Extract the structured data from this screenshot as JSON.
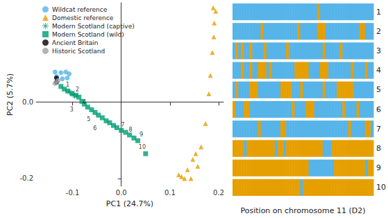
{
  "chart_data": [
    {
      "type": "scatter",
      "xlabel": "PC1 (24.7%)",
      "ylabel": "PC2 (5.7%)",
      "xlim": [
        -0.175,
        0.21
      ],
      "ylim": [
        -0.22,
        0.26
      ],
      "xticks": [
        -0.1,
        {
          "value": 0,
          "label": "0.0"
        },
        0.1,
        0.2
      ],
      "yticks": [
        -0.2,
        {
          "value": 0,
          "label": "0.0"
        }
      ],
      "grid": false,
      "legend": "top-left",
      "series": [
        {
          "name": "Wildcat reference",
          "color": "#56B4E9",
          "marker": "circle",
          "x": [
            -0.136,
            -0.124,
            -0.114,
            -0.107,
            -0.133,
            -0.111,
            -0.121
          ],
          "y": [
            0.079,
            0.077,
            0.079,
            0.074,
            0.067,
            0.063,
            0.061
          ]
        },
        {
          "name": "Domestic reference",
          "color": "#E69F00",
          "marker": "triangle",
          "x": [
            0.124,
            0.13,
            0.136,
            0.147,
            0.153,
            0.164,
            0.157,
            0.173,
            0.18,
            0.183,
            0.187,
            0.19,
            0.191,
            0.194,
            0.189,
            0.143,
            0.118
          ],
          "y": [
            -0.195,
            -0.2,
            -0.177,
            -0.15,
            -0.135,
            -0.117,
            -0.168,
            -0.056,
            0.022,
            0.07,
            0.13,
            0.171,
            0.207,
            0.238,
            0.247,
            -0.2,
            -0.19
          ]
        },
        {
          "name": "Modern Scotland (captive)",
          "color": "#009E73",
          "marker": "asterisk",
          "x": [
            -0.107,
            -0.101,
            -0.096
          ],
          "y": [
            0.027,
            0.02,
            0.016
          ]
        },
        {
          "name": "Modern Scotland (wild)",
          "color": "#009E73",
          "marker": "square",
          "x": [
            -0.124,
            -0.117,
            -0.11,
            -0.101,
            -0.093,
            -0.087,
            -0.081,
            -0.076,
            -0.069,
            -0.061,
            -0.054,
            -0.047,
            -0.039,
            -0.031,
            -0.024,
            -0.016,
            -0.009,
            0.0,
            0.009,
            0.017,
            0.026,
            0.034,
            0.05
          ],
          "y": [
            0.041,
            0.034,
            0.029,
            0.023,
            0.018,
            0.013,
            0.002,
            -0.005,
            -0.013,
            -0.02,
            -0.027,
            -0.034,
            -0.041,
            -0.049,
            -0.054,
            -0.061,
            -0.067,
            -0.074,
            -0.079,
            -0.086,
            -0.094,
            -0.101,
            -0.135
          ]
        },
        {
          "name": "Ancient Britain",
          "color": "#000000",
          "marker": "circle",
          "x": [
            -0.133,
            -0.133
          ],
          "y": [
            0.063,
            0.052
          ]
        },
        {
          "name": "Historic Scotland",
          "color": "#A0A0A0",
          "marker": "circle",
          "x": [
            -0.136,
            -0.13
          ],
          "y": [
            0.049,
            0.056
          ]
        }
      ],
      "annotations": [
        {
          "text": "1",
          "x": -0.11,
          "y": 0.046
        },
        {
          "text": "2",
          "x": -0.09,
          "y": 0.033
        },
        {
          "text": "3",
          "x": -0.102,
          "y": -0.02
        },
        {
          "text": "4",
          "x": -0.076,
          "y": 0.0
        },
        {
          "text": "5",
          "x": -0.067,
          "y": -0.045
        },
        {
          "text": "6",
          "x": -0.054,
          "y": -0.068
        },
        {
          "text": "7",
          "x": 0.003,
          "y": -0.06
        },
        {
          "text": "8",
          "x": 0.019,
          "y": -0.073
        },
        {
          "text": "9",
          "x": 0.041,
          "y": -0.085
        },
        {
          "text": "10",
          "x": 0.043,
          "y": -0.118
        }
      ]
    },
    {
      "type": "heatmap",
      "xlabel": "Position on chromosome 11 (D2)",
      "categories": [
        "1",
        "2",
        "3",
        "4",
        "5",
        "6",
        "7",
        "8",
        "9",
        "10"
      ],
      "tick_labels": "y",
      "colors": [
        "#56B4E9",
        "#E69F00"
      ],
      "cells": [
        [
          0,
          0,
          0,
          0,
          0,
          0,
          0,
          0,
          0,
          0,
          0,
          0,
          0,
          0,
          0,
          0,
          0,
          0,
          0,
          0,
          0,
          0,
          0,
          0,
          0,
          0,
          0,
          0,
          0,
          0,
          1,
          0,
          0,
          0,
          0,
          0,
          0,
          0,
          0,
          0,
          0,
          0,
          0,
          0,
          0,
          0,
          0,
          0,
          0,
          0
        ],
        [
          0,
          0,
          0,
          0,
          0,
          0,
          0,
          0,
          0,
          0,
          1,
          0,
          0,
          0,
          0,
          0,
          0,
          0,
          0,
          0,
          0,
          0,
          0,
          1,
          0,
          0,
          0,
          0,
          0,
          0,
          1,
          1,
          1,
          0,
          0,
          0,
          0,
          0,
          0,
          0,
          0,
          0,
          0,
          0,
          0,
          1,
          1,
          0,
          0,
          0
        ],
        [
          0,
          1,
          0,
          1,
          0,
          0,
          1,
          0,
          0,
          0,
          0,
          1,
          0,
          0,
          0,
          0,
          0,
          0,
          0,
          1,
          0,
          0,
          0,
          0,
          0,
          0,
          0,
          0,
          0,
          0,
          0,
          0,
          1,
          0,
          0,
          0,
          0,
          0,
          1,
          0,
          0,
          0,
          0,
          0,
          0,
          0,
          0,
          0,
          0,
          0
        ],
        [
          0,
          0,
          0,
          1,
          0,
          0,
          1,
          0,
          0,
          1,
          1,
          1,
          0,
          1,
          0,
          0,
          0,
          0,
          0,
          0,
          0,
          0,
          1,
          1,
          1,
          1,
          1,
          0,
          0,
          0,
          0,
          1,
          1,
          1,
          0,
          0,
          0,
          0,
          0,
          0,
          0,
          0,
          1,
          0,
          0,
          0,
          0,
          1,
          0,
          0
        ],
        [
          0,
          1,
          0,
          0,
          0,
          0,
          1,
          1,
          1,
          0,
          0,
          0,
          0,
          0,
          0,
          0,
          0,
          1,
          1,
          1,
          1,
          0,
          0,
          0,
          1,
          0,
          0,
          0,
          0,
          0,
          0,
          0,
          1,
          0,
          0,
          0,
          0,
          1,
          1,
          1,
          1,
          1,
          1,
          0,
          0,
          0,
          0,
          0,
          0,
          0
        ],
        [
          1,
          0,
          0,
          0,
          1,
          1,
          0,
          0,
          0,
          0,
          0,
          0,
          0,
          0,
          0,
          0,
          0,
          0,
          0,
          0,
          0,
          1,
          0,
          0,
          0,
          0,
          1,
          1,
          1,
          0,
          0,
          0,
          0,
          0,
          0,
          0,
          0,
          0,
          0,
          1,
          0,
          0,
          0,
          0,
          1,
          0,
          0,
          0,
          0,
          0
        ],
        [
          0,
          0,
          0,
          0,
          0,
          0,
          0,
          0,
          0,
          1,
          0,
          0,
          0,
          0,
          0,
          0,
          0,
          1,
          1,
          0,
          0,
          0,
          0,
          0,
          0,
          0,
          0,
          0,
          0,
          0,
          0,
          0,
          0,
          0,
          0,
          0,
          0,
          0,
          0,
          0,
          0,
          1,
          0,
          0,
          0,
          0,
          0,
          1,
          1,
          0
        ],
        [
          1,
          1,
          1,
          1,
          0,
          1,
          1,
          1,
          1,
          1,
          1,
          1,
          1,
          1,
          1,
          0,
          1,
          1,
          0,
          1,
          1,
          1,
          1,
          1,
          1,
          1,
          1,
          1,
          1,
          1,
          1,
          1,
          0,
          0,
          0,
          1,
          1,
          1,
          1,
          1,
          1,
          1,
          1,
          1,
          1,
          1,
          1,
          1,
          1,
          1
        ],
        [
          1,
          1,
          1,
          1,
          1,
          1,
          1,
          1,
          1,
          1,
          1,
          1,
          1,
          1,
          1,
          1,
          1,
          1,
          1,
          1,
          1,
          1,
          1,
          1,
          1,
          1,
          1,
          0,
          0,
          0,
          0,
          0,
          0,
          0,
          0,
          0,
          1,
          1,
          1,
          1,
          1,
          1,
          1,
          1,
          1,
          1,
          1,
          0,
          1,
          1
        ],
        [
          1,
          1,
          1,
          1,
          1,
          1,
          1,
          1,
          1,
          1,
          1,
          1,
          1,
          1,
          1,
          1,
          1,
          1,
          1,
          1,
          1,
          1,
          1,
          1,
          0,
          1,
          1,
          1,
          1,
          1,
          1,
          1,
          1,
          1,
          1,
          1,
          1,
          1,
          1,
          1,
          1,
          1,
          1,
          1,
          1,
          1,
          1,
          1,
          1,
          1
        ]
      ]
    }
  ]
}
